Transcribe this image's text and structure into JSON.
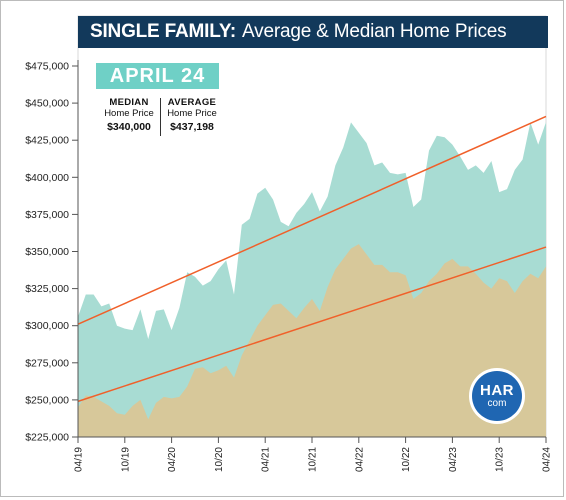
{
  "title": {
    "bold": "SINGLE FAMILY:",
    "rest": "Average & Median Home Prices"
  },
  "badge": "APRIL 24",
  "stats": {
    "median": {
      "head": "MEDIAN",
      "sub": "Home Price",
      "value": "$340,000"
    },
    "average": {
      "head": "AVERAGE",
      "sub": "Home Price",
      "value": "$437,198"
    }
  },
  "logo": {
    "top": "HAR",
    "bottom": "com"
  },
  "colors": {
    "average_fill": "#a8dcd3",
    "median_fill": "#d7c89a",
    "trend_line": "#f0602a",
    "title_bg": "#12395b",
    "badge_bg": "#6fd0c6",
    "logo_bg": "#1f66b2"
  },
  "chart_data": {
    "type": "area",
    "title": "SINGLE FAMILY: Average & Median Home Prices",
    "xlabel": "",
    "ylabel": "",
    "ylim": [
      225000,
      475000
    ],
    "y_ticks": [
      225000,
      250000,
      275000,
      300000,
      325000,
      350000,
      375000,
      400000,
      425000,
      450000,
      475000
    ],
    "y_tick_labels": [
      "$225,000",
      "$250,000",
      "$275,000",
      "$300,000",
      "$325,000",
      "$350,000",
      "$375,000",
      "$400,000",
      "$425,000",
      "$450,000",
      "$475,000"
    ],
    "x": [
      "04/19",
      "05/19",
      "06/19",
      "07/19",
      "08/19",
      "09/19",
      "10/19",
      "11/19",
      "12/19",
      "01/20",
      "02/20",
      "03/20",
      "04/20",
      "05/20",
      "06/20",
      "07/20",
      "08/20",
      "09/20",
      "10/20",
      "11/20",
      "12/20",
      "01/21",
      "02/21",
      "03/21",
      "04/21",
      "05/21",
      "06/21",
      "07/21",
      "08/21",
      "09/21",
      "10/21",
      "11/21",
      "12/21",
      "01/22",
      "02/22",
      "03/22",
      "04/22",
      "05/22",
      "06/22",
      "07/22",
      "08/22",
      "09/22",
      "10/22",
      "11/22",
      "12/22",
      "01/23",
      "02/23",
      "03/23",
      "04/23",
      "05/23",
      "06/23",
      "07/23",
      "08/23",
      "09/23",
      "10/23",
      "11/23",
      "12/23",
      "01/24",
      "02/24",
      "03/24",
      "04/24"
    ],
    "x_tick_labels": [
      "04/19",
      "10/19",
      "04/20",
      "10/20",
      "04/21",
      "10/21",
      "04/22",
      "10/22",
      "04/23",
      "10/23",
      "04/24"
    ],
    "x_tick_every": 6,
    "grid": false,
    "series": [
      {
        "name": "Average Home Price",
        "values": [
          306000,
          321000,
          321000,
          313000,
          315000,
          300000,
          298000,
          297000,
          311000,
          291000,
          310000,
          311000,
          297000,
          312000,
          336000,
          333000,
          327000,
          330000,
          338000,
          344000,
          321000,
          368000,
          372000,
          389000,
          393000,
          385000,
          370000,
          367000,
          376000,
          382000,
          390000,
          377000,
          387000,
          408000,
          420000,
          437000,
          430000,
          423000,
          408000,
          410000,
          403000,
          402000,
          403000,
          380000,
          385000,
          418000,
          428000,
          427000,
          422000,
          414000,
          405000,
          408000,
          403000,
          411000,
          390000,
          392000,
          405000,
          412000,
          437000,
          422000,
          437198
        ]
      },
      {
        "name": "Median Home Price",
        "values": [
          245000,
          253000,
          252000,
          249000,
          246000,
          241000,
          240000,
          246000,
          250000,
          237000,
          248000,
          252000,
          251000,
          252000,
          259000,
          271000,
          272000,
          268000,
          270000,
          273000,
          265000,
          280000,
          290000,
          300000,
          307000,
          314000,
          315000,
          310000,
          305000,
          312000,
          318000,
          310000,
          326000,
          338000,
          345000,
          352000,
          355000,
          348000,
          341000,
          341000,
          336000,
          336000,
          334000,
          318000,
          322000,
          330000,
          335000,
          342000,
          345000,
          340000,
          340000,
          335000,
          329000,
          325000,
          332000,
          330000,
          322000,
          330000,
          335000,
          332000,
          340000
        ]
      },
      {
        "name": "Average trend",
        "type": "line",
        "x": [
          "04/19",
          "04/24"
        ],
        "values": [
          301000,
          441000
        ]
      },
      {
        "name": "Median trend",
        "type": "line",
        "x": [
          "04/19",
          "04/24"
        ],
        "values": [
          249000,
          353000
        ]
      }
    ]
  }
}
